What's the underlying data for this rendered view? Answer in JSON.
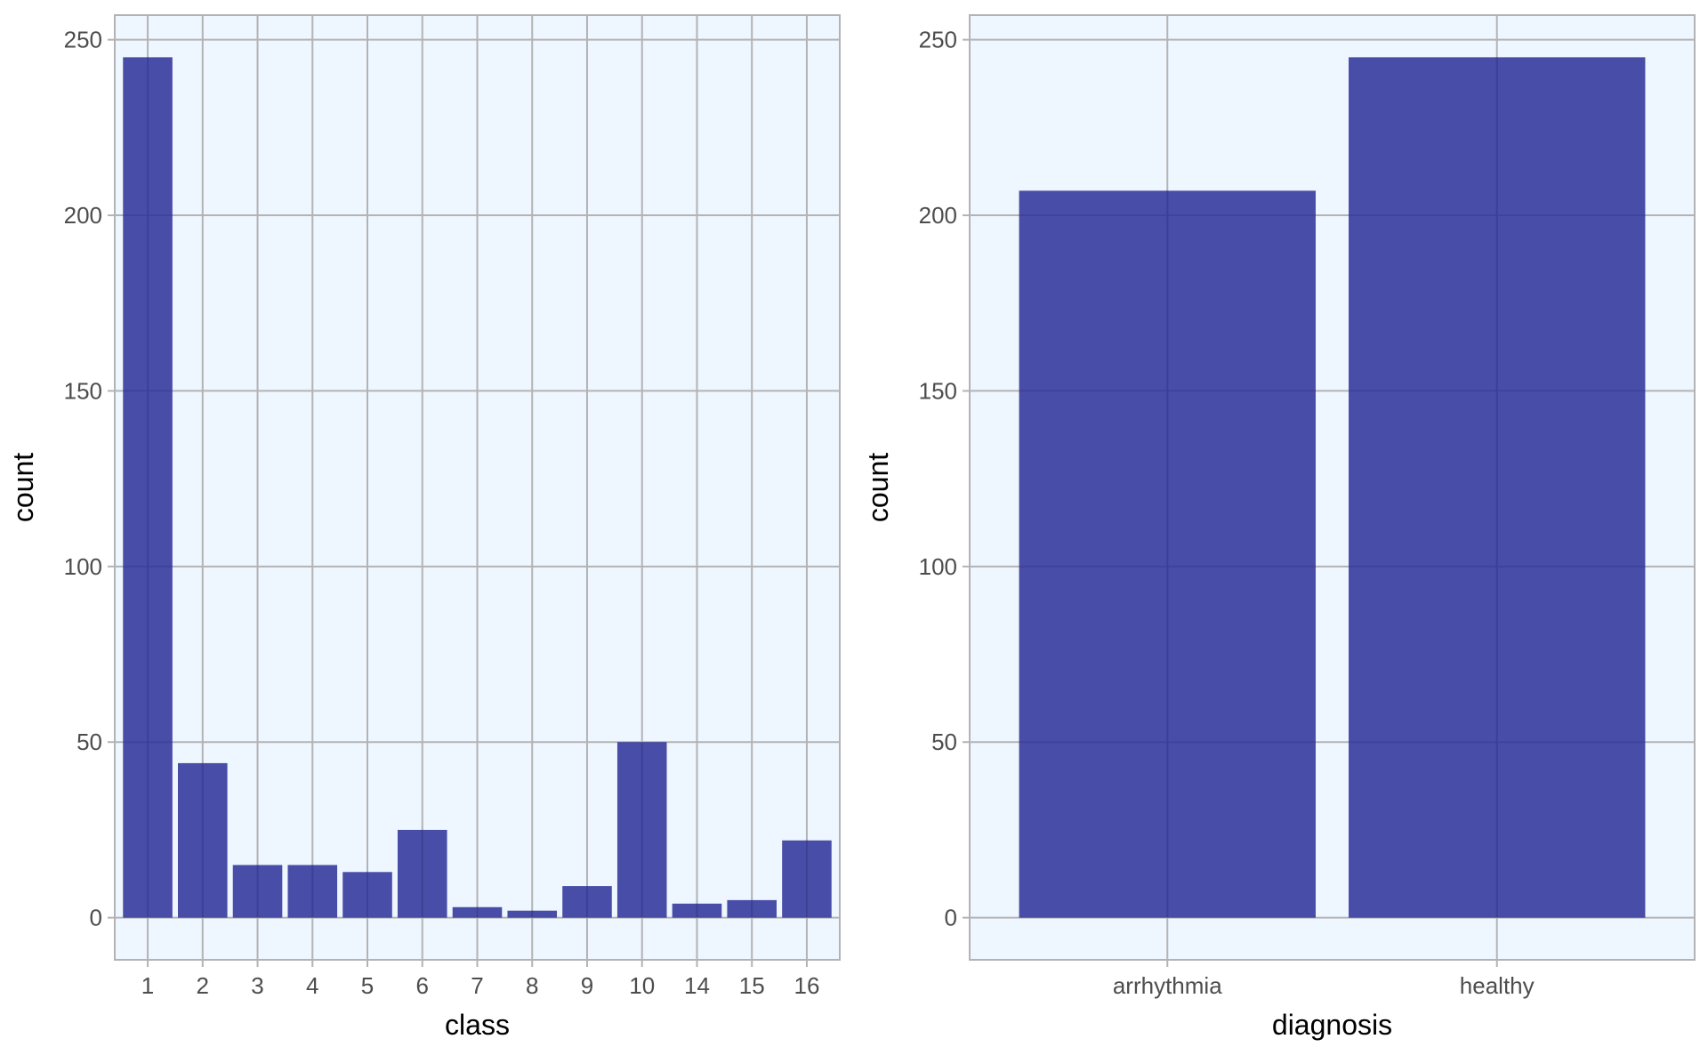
{
  "colors": {
    "panel_background": "#eef6ff",
    "grid": "#b3b3b3",
    "border": "#b3b3b3",
    "bar_fill": "#2a2f99"
  },
  "chart_data": [
    {
      "type": "bar",
      "xlabel": "class",
      "ylabel": "count",
      "categories": [
        "1",
        "2",
        "3",
        "4",
        "5",
        "6",
        "7",
        "8",
        "9",
        "10",
        "14",
        "15",
        "16"
      ],
      "values": [
        245,
        44,
        15,
        15,
        13,
        25,
        3,
        2,
        9,
        50,
        4,
        5,
        22
      ],
      "yticks": [
        "0",
        "50",
        "100",
        "150",
        "200",
        "250"
      ],
      "ylim": [
        -12,
        257
      ],
      "grid": true
    },
    {
      "type": "bar",
      "xlabel": "diagnosis",
      "ylabel": "count",
      "categories": [
        "arrhythmia",
        "healthy"
      ],
      "values": [
        207,
        245
      ],
      "yticks": [
        "0",
        "50",
        "100",
        "150",
        "200",
        "250"
      ],
      "ylim": [
        -12,
        257
      ],
      "grid": true
    }
  ]
}
